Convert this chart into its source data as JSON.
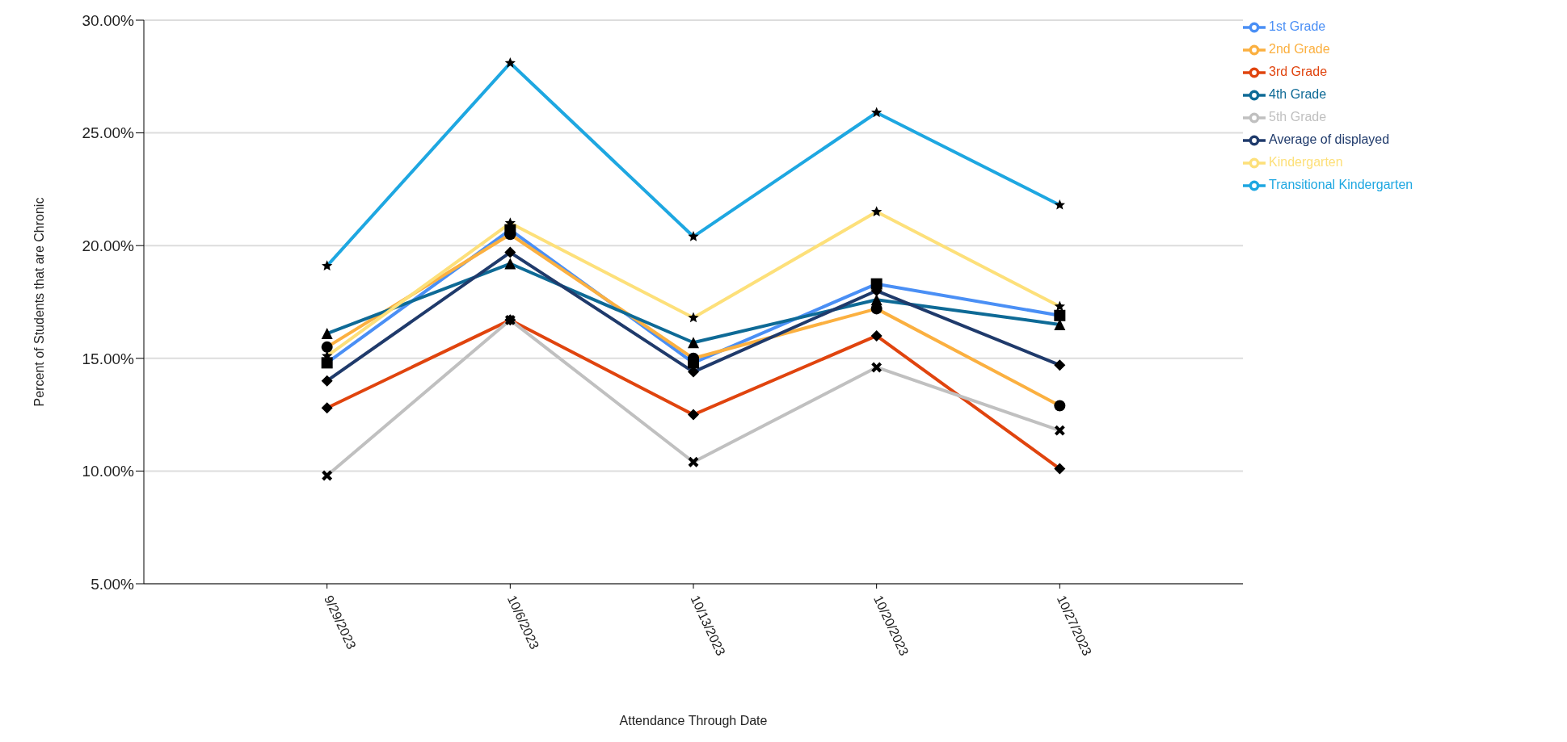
{
  "chart_data": {
    "type": "line",
    "xlabel": "Attendance Through Date",
    "ylabel": "Percent of Students that are Chronic",
    "categories": [
      "9/29/2023",
      "10/6/2023",
      "10/13/2023",
      "10/20/2023",
      "10/27/2023"
    ],
    "ylim": [
      5,
      30
    ],
    "yticks": [
      {
        "value": 5,
        "label": "5.00%"
      },
      {
        "value": 10,
        "label": "10.00%"
      },
      {
        "value": 15,
        "label": "15.00%"
      },
      {
        "value": 20,
        "label": "20.00%"
      },
      {
        "value": 25,
        "label": "25.00%"
      },
      {
        "value": 30,
        "label": "30.00%"
      }
    ],
    "grid": "y",
    "legend": "top right",
    "line_style": "solid",
    "series": [
      {
        "name": "1st Grade",
        "color": "#4a8ff5",
        "marker": "square",
        "values": [
          14.8,
          20.7,
          14.8,
          18.3,
          16.9
        ]
      },
      {
        "name": "2nd Grade",
        "color": "#fbb040",
        "marker": "circle",
        "values": [
          15.5,
          20.5,
          15.0,
          17.2,
          12.9
        ]
      },
      {
        "name": "3rd Grade",
        "color": "#e0440e",
        "marker": "diamond",
        "values": [
          12.8,
          16.7,
          12.5,
          16.0,
          10.1
        ]
      },
      {
        "name": "4th Grade",
        "color": "#0e6a96",
        "marker": "triangle",
        "values": [
          16.1,
          19.2,
          15.7,
          17.6,
          16.5
        ]
      },
      {
        "name": "5th Grade",
        "color": "#c0c0c0",
        "marker": "cross",
        "values": [
          9.8,
          16.7,
          10.4,
          14.6,
          11.8
        ]
      },
      {
        "name": "Average of displayed",
        "color": "#1f3a6b",
        "marker": "diamond",
        "values": [
          14.0,
          19.7,
          14.4,
          18.0,
          14.7
        ]
      },
      {
        "name": "Kindergarten",
        "color": "#fde07a",
        "marker": "star",
        "values": [
          15.1,
          21.0,
          16.8,
          21.5,
          17.3
        ]
      },
      {
        "name": "Transitional Kindergarten",
        "color": "#1ea7e1",
        "marker": "star",
        "values": [
          19.1,
          28.1,
          20.4,
          25.9,
          21.8
        ]
      }
    ]
  }
}
